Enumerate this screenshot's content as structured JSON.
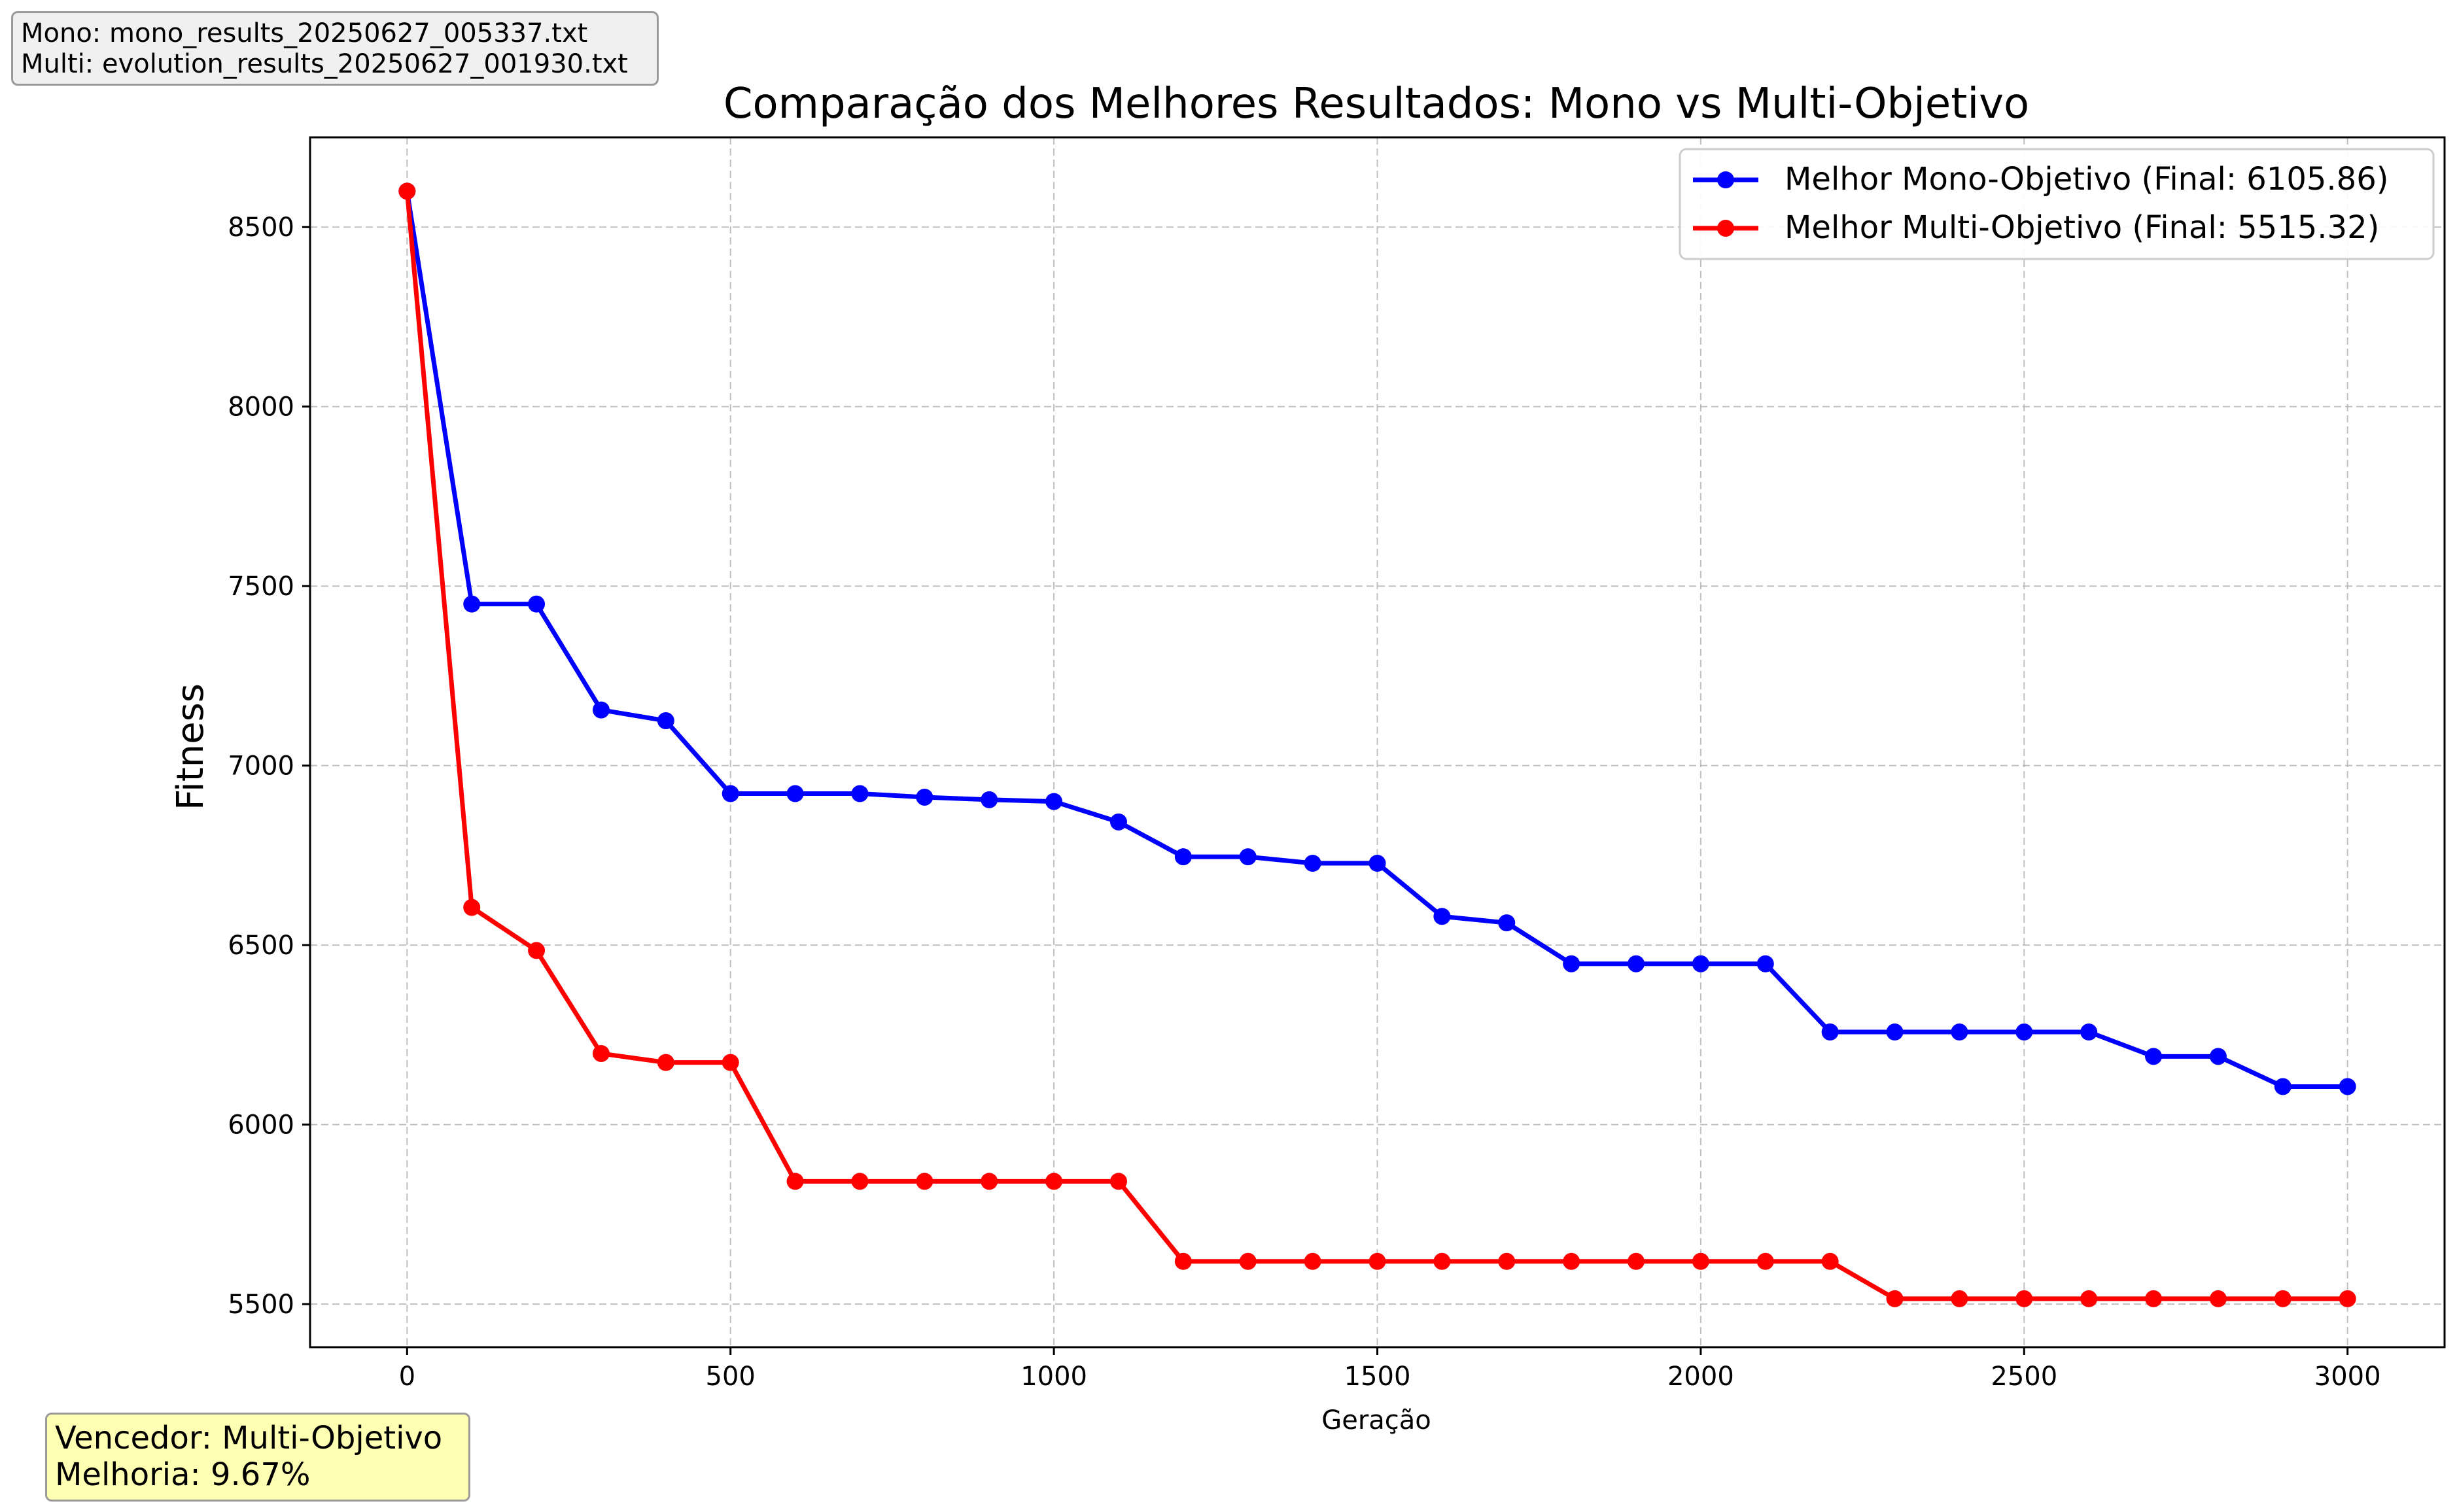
{
  "info_box": {
    "mono_line": "Mono: mono_results_20250627_005337.txt",
    "multi_line": "Multi: evolution_results_20250627_001930.txt"
  },
  "winner_box": {
    "winner_line": "Vencedor: Multi-Objetivo",
    "improvement_line": "Melhoria: 9.67%"
  },
  "chart_data": {
    "type": "line",
    "title": "Comparação dos Melhores Resultados: Mono vs Multi-Objetivo",
    "xlabel": "Geração",
    "ylabel": "Fitness",
    "xlim": [
      -150,
      3150
    ],
    "ylim": [
      5380,
      8750
    ],
    "xticks": [
      0,
      500,
      1000,
      1500,
      2000,
      2500,
      3000
    ],
    "yticks": [
      5500,
      6000,
      6500,
      7000,
      7500,
      8000,
      8500
    ],
    "grid": true,
    "legend_position": "top-right",
    "x": [
      0,
      100,
      200,
      300,
      400,
      500,
      600,
      700,
      800,
      900,
      1000,
      1100,
      1200,
      1300,
      1400,
      1500,
      1600,
      1700,
      1800,
      1900,
      2000,
      2100,
      2200,
      2300,
      2400,
      2500,
      2600,
      2700,
      2800,
      2900,
      3000
    ],
    "series": [
      {
        "name": "Melhor Mono-Objetivo (Final: 6105.86)",
        "color": "#0000ff",
        "values": [
          8600,
          7450,
          7450,
          7155,
          7125,
          6922,
          6922,
          6922,
          6912,
          6905,
          6900,
          6843,
          6746,
          6746,
          6728,
          6728,
          6580,
          6562,
          6448,
          6448,
          6448,
          6448,
          6258,
          6258,
          6258,
          6258,
          6258,
          6190,
          6190,
          6106,
          6106
        ]
      },
      {
        "name": "Melhor Multi-Objetivo (Final: 5515.32)",
        "color": "#ff0000",
        "values": [
          8600,
          6605,
          6485,
          6198,
          6173,
          6173,
          5842,
          5842,
          5842,
          5842,
          5842,
          5842,
          5619,
          5619,
          5619,
          5619,
          5619,
          5619,
          5619,
          5619,
          5619,
          5619,
          5619,
          5515,
          5515,
          5515,
          5515,
          5515,
          5515,
          5515,
          5515
        ]
      }
    ]
  }
}
